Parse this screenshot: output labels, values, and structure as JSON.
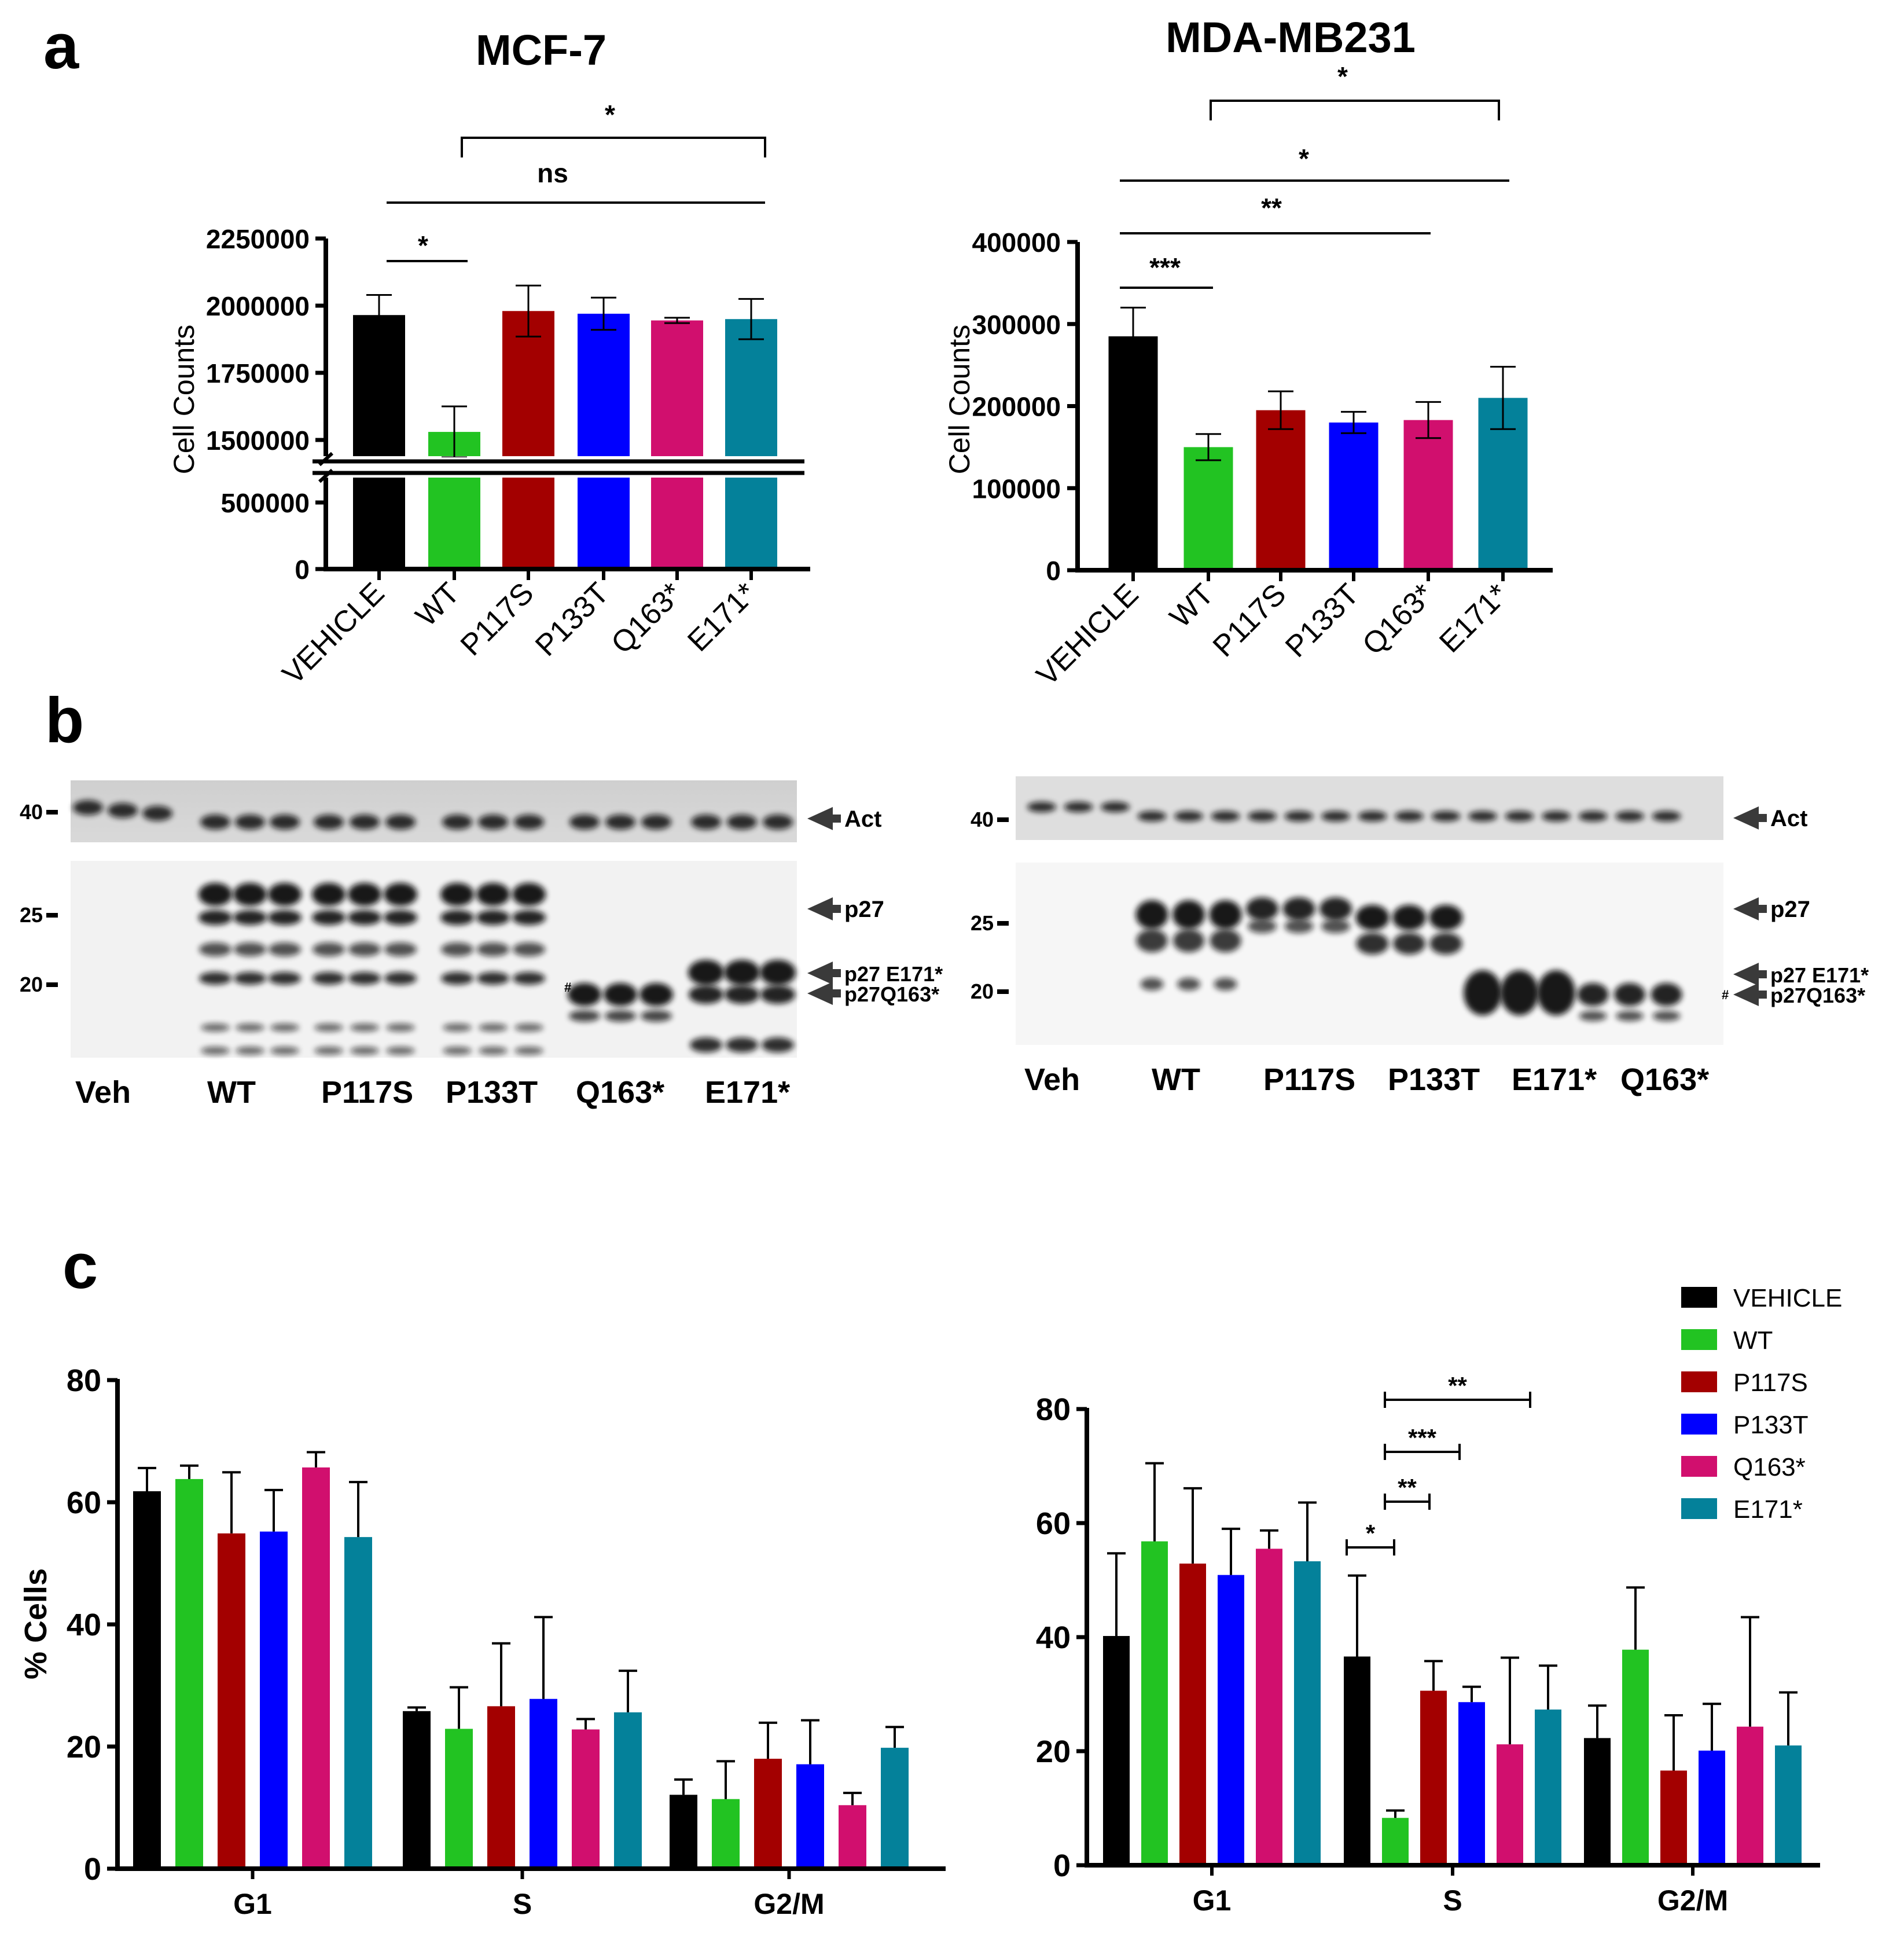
{
  "figure": {
    "panel_labels": [
      "a",
      "b",
      "c"
    ]
  },
  "colors": {
    "VEHICLE": "#000000",
    "WT": "#22c322",
    "P117S": "#a30000",
    "P133T": "#0000ff",
    "Q163*": "#d10f6e",
    "E171*": "#04819a"
  },
  "panel_a": {
    "mcf7": {
      "title": "MCF-7",
      "ylabel": "Cell Counts",
      "categories": [
        "VEHICLE",
        "WT",
        "P117S",
        "P133T",
        "Q163*",
        "E171*"
      ],
      "upper_ticks": [
        "2250000",
        "2000000",
        "1750000",
        "1500000"
      ],
      "lower_ticks": [
        "500000",
        "0"
      ],
      "sig": [
        "*",
        "ns",
        "*"
      ]
    },
    "mda": {
      "title": "MDA-MB231",
      "ylabel": "Cell Counts",
      "categories": [
        "VEHICLE",
        "WT",
        "P117S",
        "P133T",
        "Q163*",
        "E171*"
      ],
      "ticks": [
        "400000",
        "300000",
        "200000",
        "100000",
        "0"
      ],
      "sig": [
        "*",
        "*",
        "**",
        "***"
      ]
    }
  },
  "panel_b": {
    "left": {
      "markers": [
        "40",
        "25",
        "20"
      ],
      "lanes": [
        "Veh",
        "WT",
        "P117S",
        "P133T",
        "Q163*",
        "E171*"
      ],
      "arrows": [
        "Act",
        "p27",
        "p27 E171*",
        "p27Q163*"
      ],
      "hash": "#"
    },
    "right": {
      "markers": [
        "40",
        "25",
        "20"
      ],
      "lanes": [
        "Veh",
        "WT",
        "P117S",
        "P133T",
        "E171*",
        "Q163*"
      ],
      "arrows": [
        "Act",
        "p27",
        "p27 E171*",
        "p27Q163*"
      ],
      "hash": "#"
    }
  },
  "panel_c": {
    "ylabel": "% Cells",
    "left_ticks": [
      "80",
      "60",
      "40",
      "20",
      "0"
    ],
    "right_ticks": [
      "80",
      "60",
      "40",
      "20",
      "0"
    ],
    "groups": [
      "G1",
      "S",
      "G2/M"
    ],
    "legend": [
      "VEHICLE",
      "WT",
      "P117S",
      "P133T",
      "Q163*",
      "E171*"
    ],
    "sig_right": [
      "**",
      "***",
      "**",
      "*"
    ]
  },
  "chart_data": [
    {
      "type": "bar",
      "title": "MCF-7",
      "xlabel": "",
      "ylabel": "Cell Counts",
      "categories": [
        "VEHICLE",
        "WT",
        "P117S",
        "P133T",
        "Q163*",
        "E171*"
      ],
      "values": [
        1965000,
        1530000,
        1980000,
        1970000,
        1945000,
        1950000
      ],
      "errors": [
        75000,
        95000,
        95000,
        60000,
        10000,
        75000
      ],
      "ylim": [
        0,
        2250000
      ],
      "axis_break": [
        600000,
        1400000
      ],
      "significance": [
        {
          "from": "VEHICLE",
          "to": "WT",
          "label": "*"
        },
        {
          "from": "VEHICLE",
          "to": "E171*",
          "label": "ns"
        },
        {
          "from": "WT",
          "to": "E171*",
          "label": "*"
        }
      ]
    },
    {
      "type": "bar",
      "title": "MDA-MB231",
      "xlabel": "",
      "ylabel": "Cell Counts",
      "categories": [
        "VEHICLE",
        "WT",
        "P117S",
        "P133T",
        "Q163*",
        "E171*"
      ],
      "values": [
        285000,
        150000,
        195000,
        180000,
        183000,
        210000
      ],
      "errors": [
        35000,
        16000,
        23000,
        13000,
        22000,
        38000
      ],
      "ylim": [
        0,
        400000
      ],
      "significance": [
        {
          "from": "VEHICLE",
          "to": "WT",
          "label": "***"
        },
        {
          "from": "VEHICLE",
          "to": "Q163*",
          "label": "**"
        },
        {
          "from": "VEHICLE",
          "to": "E171*",
          "label": "*"
        },
        {
          "from": "WT",
          "to": "E171*",
          "label": "*"
        }
      ]
    },
    {
      "type": "bar",
      "title": "",
      "xlabel": "",
      "ylabel": "% Cells",
      "categories": [
        "G1",
        "S",
        "G2/M"
      ],
      "series": [
        {
          "name": "VEHICLE",
          "values": [
            61.8,
            25.8,
            12.1
          ],
          "errors": [
            3.8,
            0.6,
            2.5
          ]
        },
        {
          "name": "WT",
          "values": [
            63.8,
            22.9,
            11.4
          ],
          "errors": [
            2.2,
            6.8,
            6.2
          ]
        },
        {
          "name": "P117S",
          "values": [
            54.9,
            26.6,
            18.0
          ],
          "errors": [
            10.0,
            10.3,
            5.9
          ]
        },
        {
          "name": "P133T",
          "values": [
            55.2,
            27.8,
            17.1
          ],
          "errors": [
            6.8,
            13.4,
            7.2
          ]
        },
        {
          "name": "Q163*",
          "values": [
            65.7,
            22.8,
            10.4
          ],
          "errors": [
            2.5,
            1.7,
            2.0
          ]
        },
        {
          "name": "E171*",
          "values": [
            54.3,
            25.6,
            19.8
          ],
          "errors": [
            9.0,
            6.8,
            3.4
          ]
        }
      ],
      "ylim": [
        0,
        80
      ]
    },
    {
      "type": "bar",
      "title": "",
      "xlabel": "",
      "ylabel": "",
      "categories": [
        "G1",
        "S",
        "G2/M"
      ],
      "series": [
        {
          "name": "VEHICLE",
          "values": [
            40.2,
            36.6,
            22.3
          ],
          "errors": [
            14.5,
            14.2,
            5.7
          ]
        },
        {
          "name": "WT",
          "values": [
            56.8,
            8.3,
            37.8
          ],
          "errors": [
            13.7,
            1.3,
            10.9
          ]
        },
        {
          "name": "P117S",
          "values": [
            52.9,
            30.6,
            16.6
          ],
          "errors": [
            13.2,
            5.2,
            9.7
          ]
        },
        {
          "name": "P133T",
          "values": [
            50.9,
            28.6,
            20.1
          ],
          "errors": [
            8.1,
            2.7,
            8.2
          ]
        },
        {
          "name": "Q163*",
          "values": [
            55.5,
            21.2,
            24.3
          ],
          "errors": [
            3.2,
            15.2,
            19.2
          ]
        },
        {
          "name": "E171*",
          "values": [
            53.3,
            27.3,
            21.0
          ],
          "errors": [
            10.3,
            7.7,
            9.3
          ]
        }
      ],
      "ylim": [
        0,
        80
      ],
      "significance": [
        {
          "group": "S",
          "from": "VEHICLE",
          "to": "WT",
          "label": "*"
        },
        {
          "group": "S",
          "from": "WT",
          "to": "P117S",
          "label": "**"
        },
        {
          "group": "S",
          "from": "WT",
          "to": "P133T",
          "label": "***"
        },
        {
          "group": "S",
          "from": "WT",
          "to": "E171*",
          "label": "**"
        }
      ]
    }
  ]
}
